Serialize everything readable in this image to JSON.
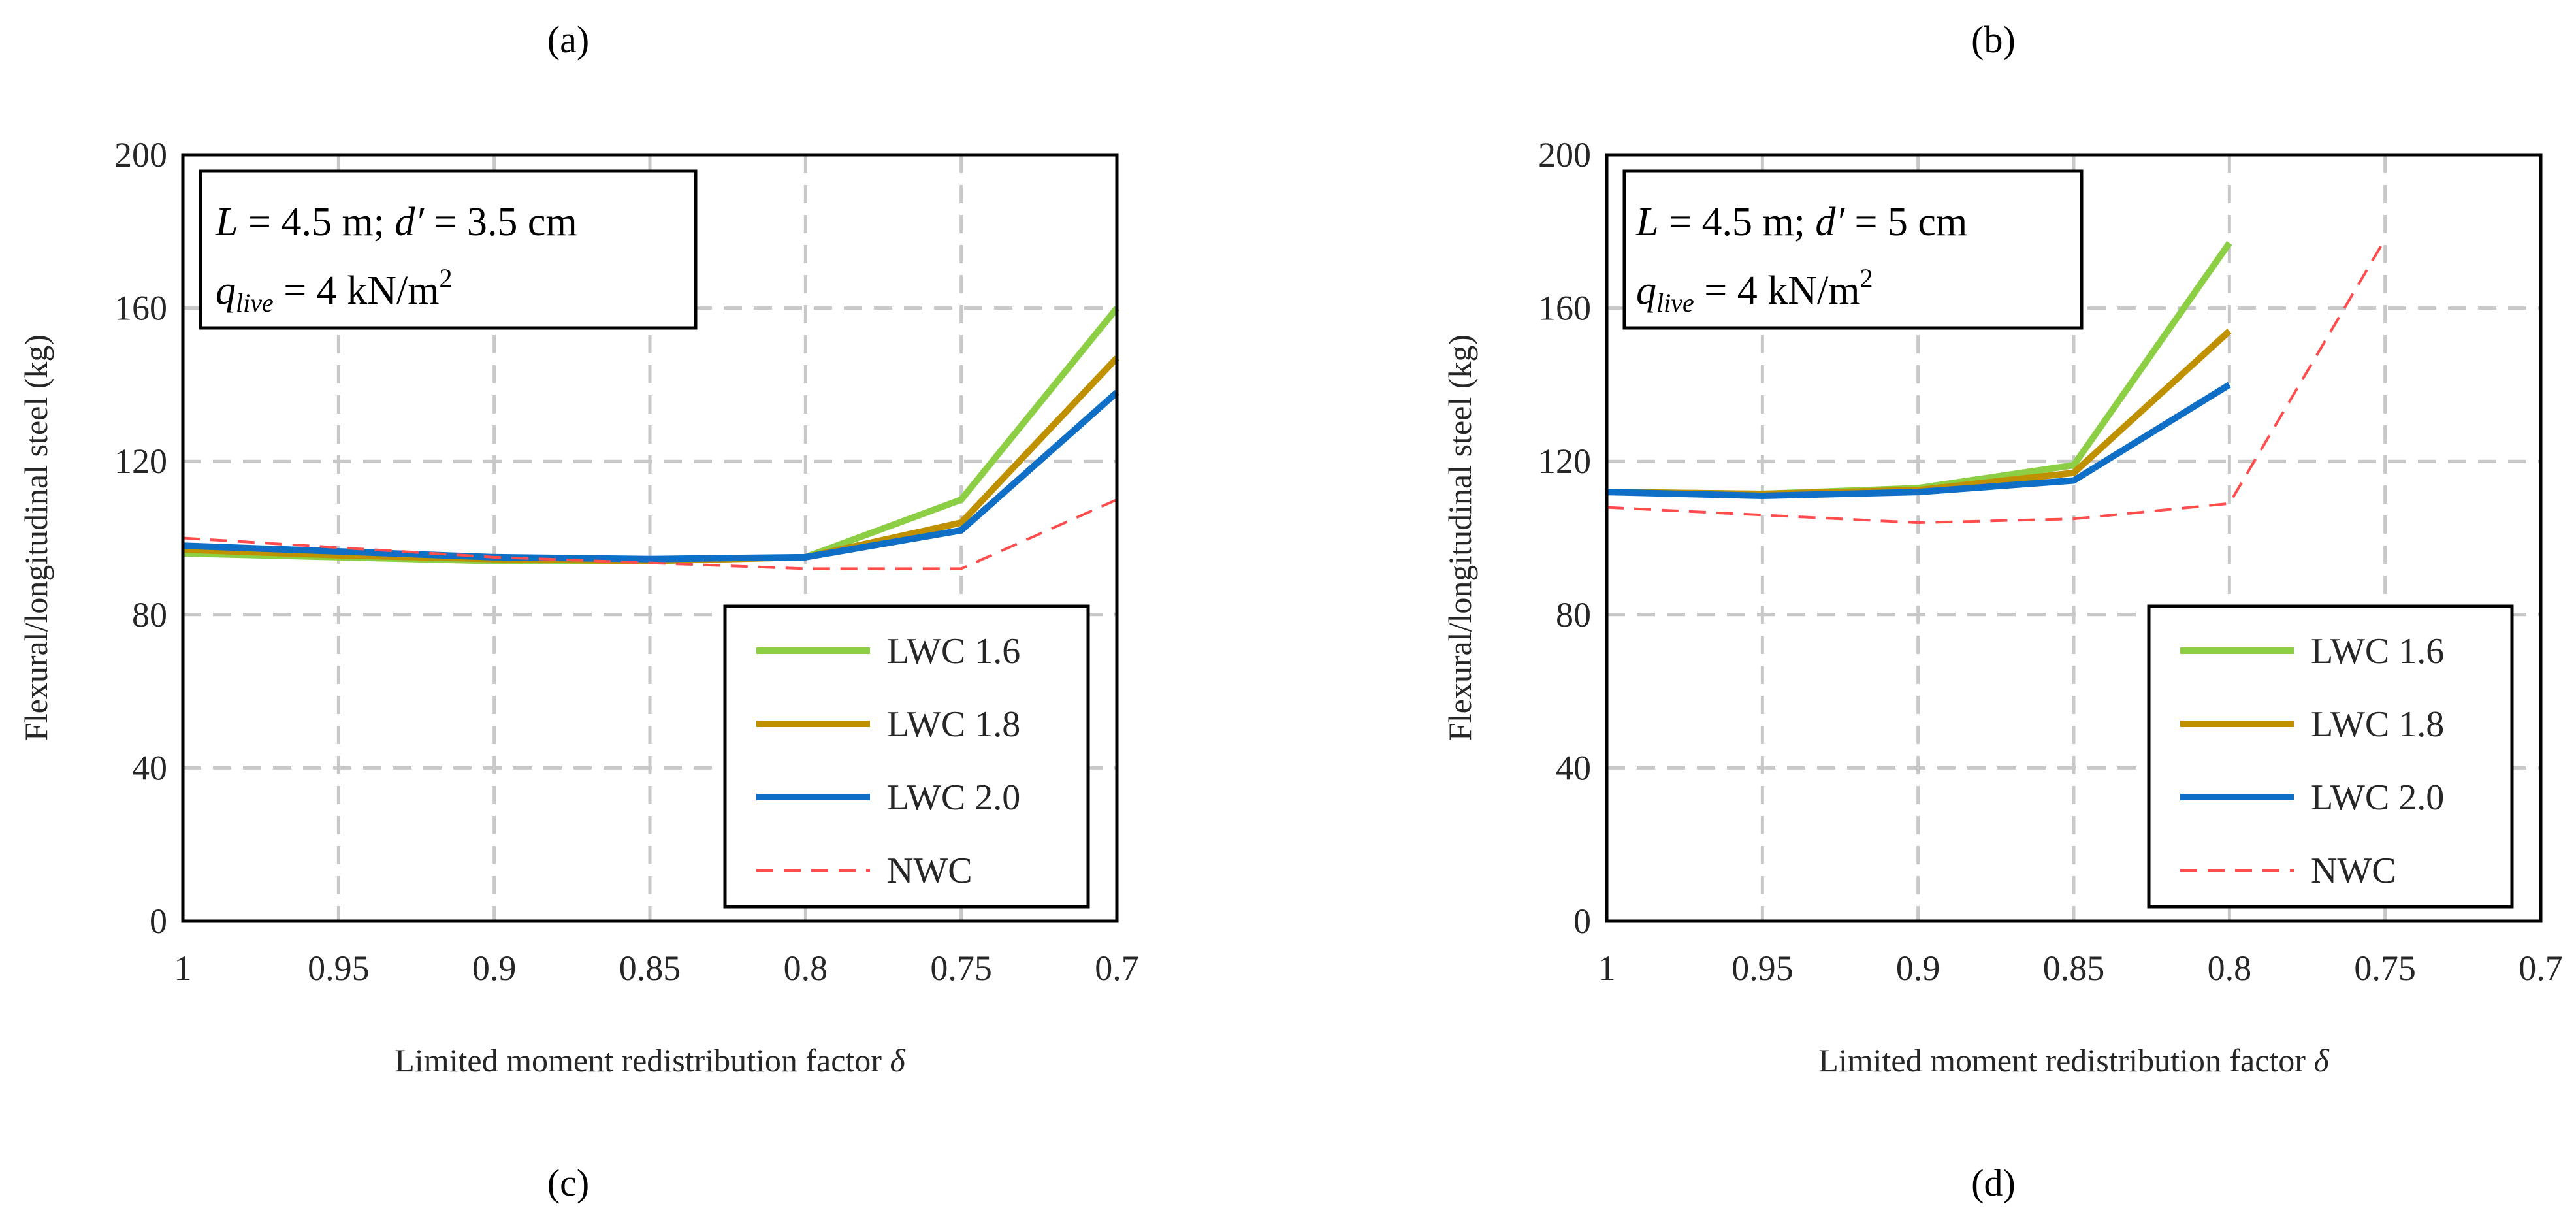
{
  "panel_labels": [
    "(a)",
    "(b)",
    "(c)",
    "(d)"
  ],
  "chart_data": [
    {
      "type": "line",
      "panel": "left",
      "title": "",
      "annotation": {
        "line1": {
          "L_sym": "L",
          "L_val": " = 4.5 m; ",
          "d_sym": "d′",
          "d_val": " = 3.5 cm"
        },
        "line2": {
          "q_sym": "q",
          "q_sub": "live",
          "q_val": " = 4 kN/m",
          "q_sup": "2"
        }
      },
      "xlabel": "Limited moment redistribution factor ",
      "xlabel_symbol": "δ",
      "ylabel": "Flexural/longitudinal steel (kg)",
      "x": [
        1,
        0.95,
        0.9,
        0.85,
        0.8,
        0.75,
        0.7
      ],
      "x_tick_labels": [
        "1",
        "0.95",
        "0.9",
        "0.85",
        "0.8",
        "0.75",
        "0.7"
      ],
      "xlim": [
        1,
        0.7
      ],
      "ylim": [
        0,
        200
      ],
      "y_ticks": [
        0,
        40,
        80,
        120,
        160,
        200
      ],
      "y_tick_labels": [
        "0",
        "40",
        "80",
        "120",
        "160",
        "200"
      ],
      "grid": true,
      "legend_position": "bottom-right",
      "series": [
        {
          "name": "LWC 1.6",
          "color": "#8ccf45",
          "style": "solid",
          "values": [
            96,
            95,
            94,
            94,
            95,
            110,
            160
          ]
        },
        {
          "name": "LWC 1.8",
          "color": "#bf9000",
          "style": "solid",
          "values": [
            97,
            95.5,
            94.5,
            94,
            95,
            104,
            147
          ]
        },
        {
          "name": "LWC 2.0",
          "color": "#0f6fc6",
          "style": "solid",
          "values": [
            98,
            96.5,
            95,
            94.5,
            95,
            102,
            138
          ]
        },
        {
          "name": "NWC",
          "color": "#ff4d4d",
          "style": "dashed",
          "values": [
            100,
            97.5,
            95,
            93.5,
            92,
            92,
            110
          ]
        }
      ]
    },
    {
      "type": "line",
      "panel": "right",
      "title": "",
      "annotation": {
        "line1": {
          "L_sym": "L",
          "L_val": " = 4.5 m; ",
          "d_sym": "d′",
          "d_val": " = 5 cm"
        },
        "line2": {
          "q_sym": "q",
          "q_sub": "live",
          "q_val": " = 4 kN/m",
          "q_sup": "2"
        }
      },
      "xlabel": "Limited moment redistribution factor ",
      "xlabel_symbol": "δ",
      "ylabel": "Flexural/longitudinal steel (kg)",
      "x": [
        1,
        0.95,
        0.9,
        0.85,
        0.8,
        0.75,
        0.7
      ],
      "x_tick_labels": [
        "1",
        "0.95",
        "0.9",
        "0.85",
        "0.8",
        "0.75",
        "0.7"
      ],
      "xlim": [
        1,
        0.7
      ],
      "ylim": [
        0,
        200
      ],
      "y_ticks": [
        0,
        40,
        80,
        120,
        160,
        200
      ],
      "y_tick_labels": [
        "0",
        "40",
        "80",
        "120",
        "160",
        "200"
      ],
      "grid": true,
      "legend_position": "bottom-right",
      "series": [
        {
          "name": "LWC 1.6",
          "color": "#8ccf45",
          "style": "solid",
          "values": [
            112,
            111.5,
            113,
            119,
            177,
            null,
            null
          ]
        },
        {
          "name": "LWC 1.8",
          "color": "#bf9000",
          "style": "solid",
          "values": [
            112,
            111.5,
            112.5,
            117,
            154,
            null,
            null
          ]
        },
        {
          "name": "LWC 2.0",
          "color": "#0f6fc6",
          "style": "solid",
          "values": [
            112,
            111,
            112,
            115,
            140,
            null,
            null
          ]
        },
        {
          "name": "NWC",
          "color": "#ff4d4d",
          "style": "dashed",
          "values": [
            108,
            106,
            104,
            105,
            109,
            178,
            null
          ]
        }
      ]
    }
  ]
}
